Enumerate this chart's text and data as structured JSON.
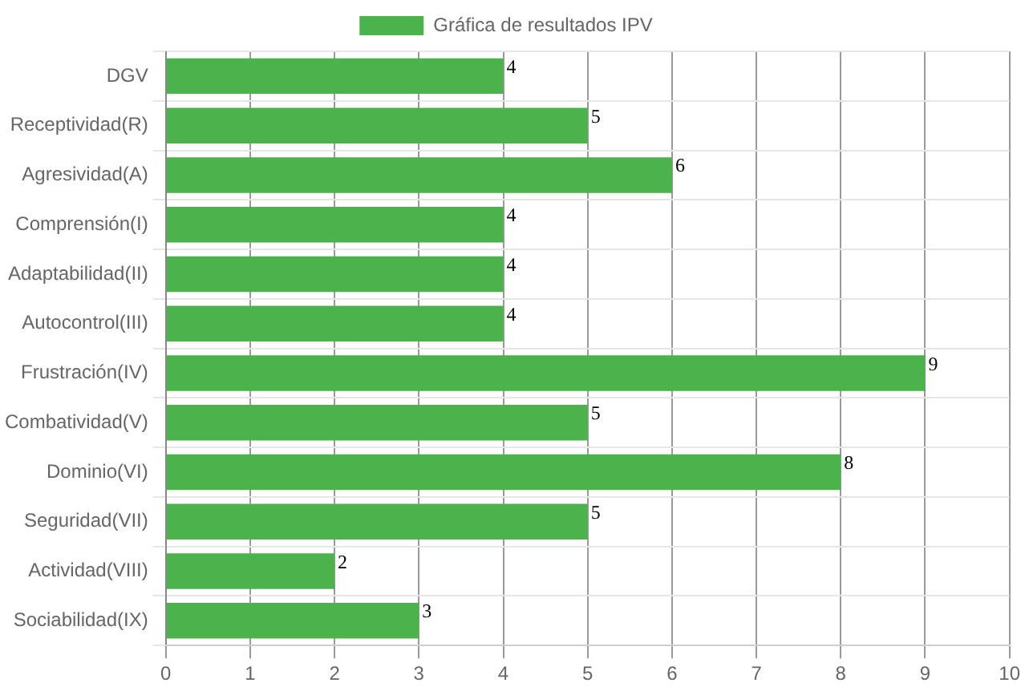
{
  "chart_data": {
    "type": "bar",
    "orientation": "horizontal",
    "categories": [
      "DGV",
      "Receptividad(R)",
      "Agresividad(A)",
      "Comprensión(I)",
      "Adaptabilidad(II)",
      "Autocontrol(III)",
      "Frustración(IV)",
      "Combatividad(V)",
      "Dominio(VI)",
      "Seguridad(VII)",
      "Actividad(VIII)",
      "Sociabilidad(IX)"
    ],
    "series": [
      {
        "name": "Gráfica de resultados IPV",
        "color": "#4cb34c",
        "values": [
          4,
          5,
          6,
          4,
          4,
          4,
          9,
          5,
          8,
          5,
          2,
          3
        ]
      }
    ],
    "xlim": [
      0,
      10
    ],
    "xticks": [
      0,
      1,
      2,
      3,
      4,
      5,
      6,
      7,
      8,
      9,
      10
    ],
    "grid": true,
    "legend": "top",
    "data_labels": true
  }
}
